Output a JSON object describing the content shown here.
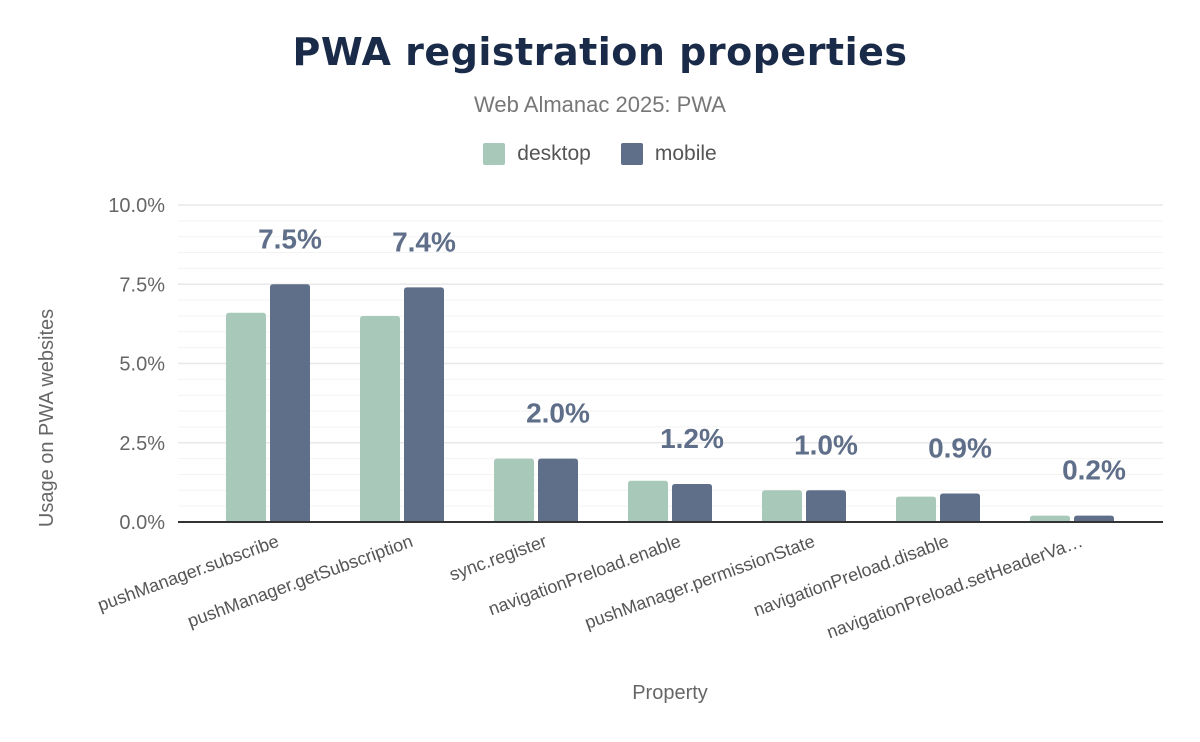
{
  "chart_data": {
    "type": "bar",
    "title": "PWA registration properties",
    "subtitle": "Web Almanac 2025: PWA",
    "xlabel": "Property",
    "ylabel": "Usage on PWA websites",
    "ylim": [
      0,
      10
    ],
    "yticks": [
      "0.0%",
      "2.5%",
      "5.0%",
      "7.5%",
      "10.0%"
    ],
    "grid": true,
    "legend_position": "top",
    "categories": [
      "pushManager.subscribe",
      "pushManager.getSubscription",
      "sync.register",
      "navigationPreload.enable",
      "pushManager.permissionState",
      "navigationPreload.disable",
      "navigationPreload.setHeaderVa…"
    ],
    "series": [
      {
        "name": "desktop",
        "color": "#a8c9b9",
        "values": [
          6.6,
          6.5,
          2.0,
          1.3,
          1.0,
          0.8,
          0.2
        ]
      },
      {
        "name": "mobile",
        "color": "#5f6e89",
        "values": [
          7.5,
          7.4,
          2.0,
          1.2,
          1.0,
          0.9,
          0.2
        ]
      }
    ],
    "data_labels": [
      "7.5%",
      "7.4%",
      "2.0%",
      "1.2%",
      "1.0%",
      "0.9%",
      "0.2%"
    ]
  }
}
